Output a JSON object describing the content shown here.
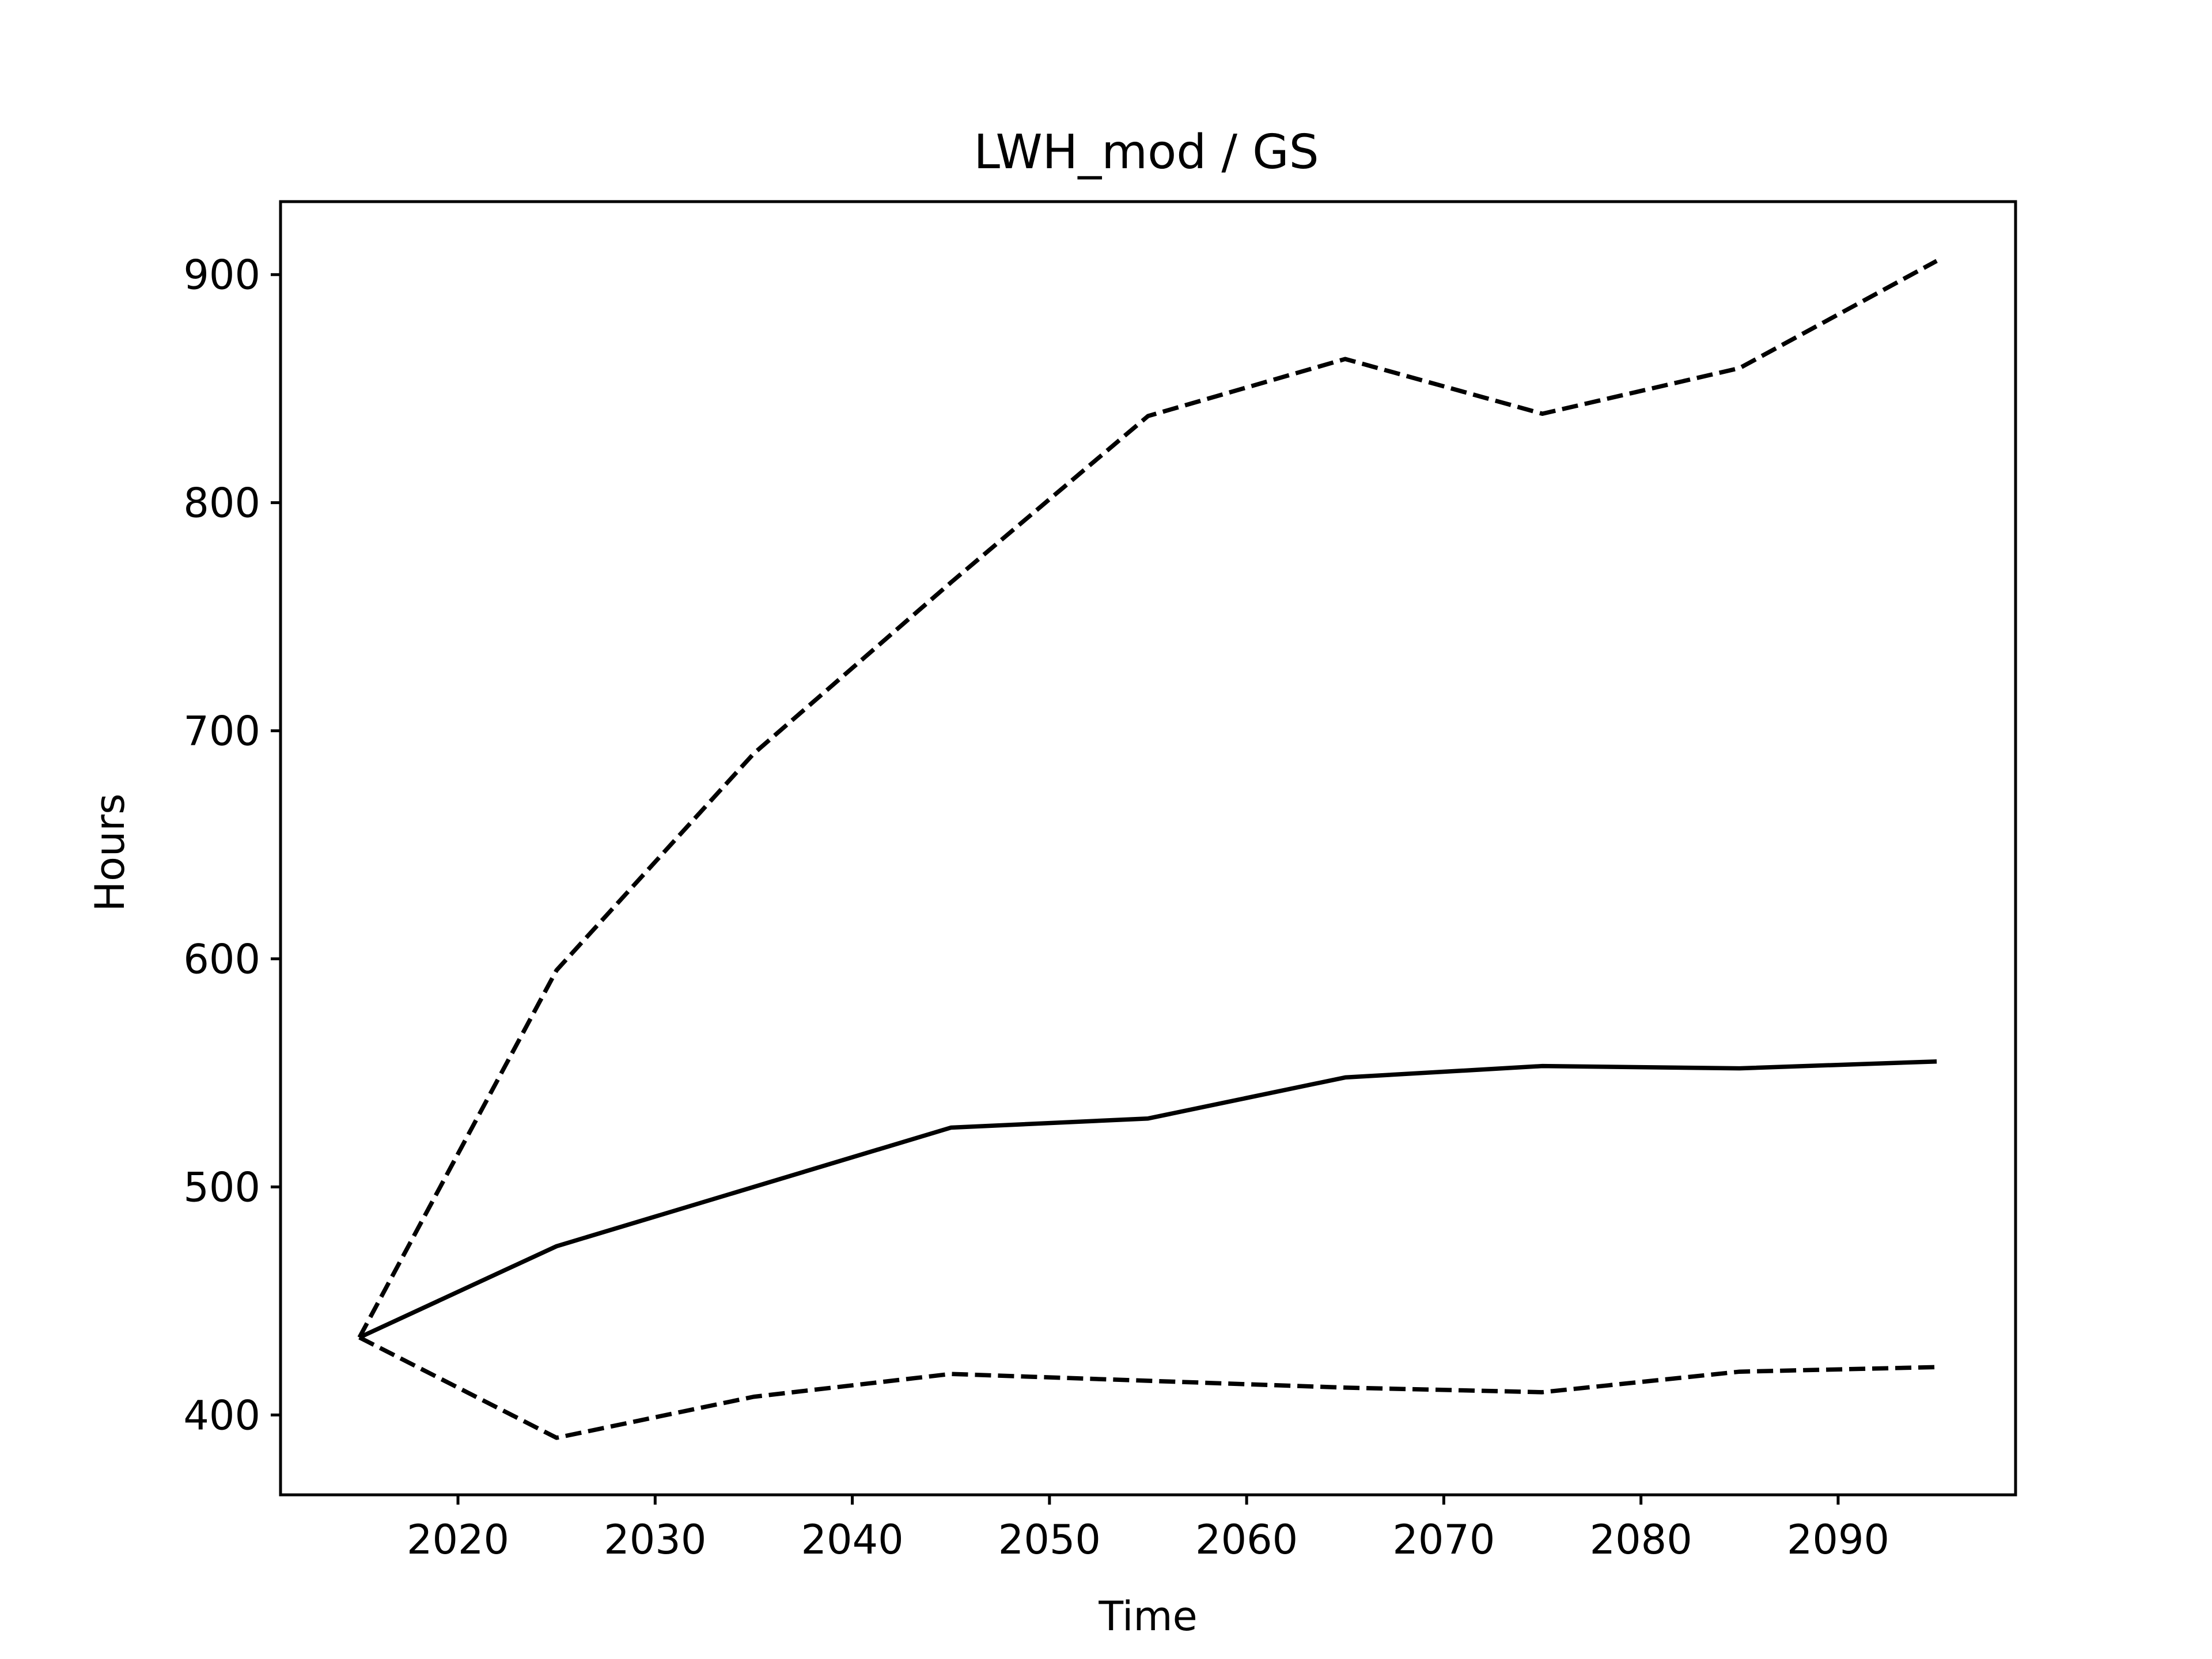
{
  "chart_data": {
    "type": "line",
    "title": "LWH_mod / GS",
    "xlabel": "Time",
    "ylabel": "Hours",
    "x": [
      2015,
      2025,
      2035,
      2045,
      2055,
      2065,
      2075,
      2085,
      2095
    ],
    "series": [
      {
        "style": "solid",
        "color": "#000000",
        "values": [
          434,
          474,
          500,
          526,
          530,
          548,
          553,
          552,
          555
        ]
      },
      {
        "style": "dashed",
        "color": "#000000",
        "values": [
          434,
          595,
          690,
          765,
          838,
          863,
          839,
          859,
          906
        ]
      },
      {
        "style": "dashed",
        "color": "#000000",
        "values": [
          434,
          390,
          408,
          418,
          415,
          412,
          410,
          419,
          421
        ]
      }
    ],
    "xlim": [
      2011,
      2099
    ],
    "ylim": [
      365,
      932
    ],
    "xticks": [
      2020,
      2030,
      2040,
      2050,
      2060,
      2070,
      2080,
      2090
    ],
    "yticks": [
      400,
      500,
      600,
      700,
      800,
      900
    ],
    "grid": false,
    "legend": "none"
  }
}
